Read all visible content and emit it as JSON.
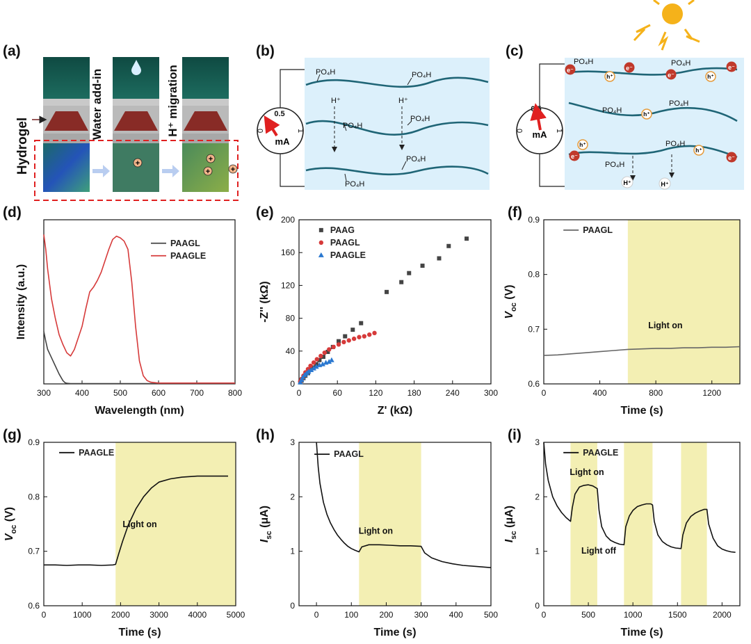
{
  "panel_labels": [
    "(a)",
    "(b)",
    "(c)",
    "(d)",
    "(e)",
    "(f)",
    "(g)",
    "(h)",
    "(i)"
  ],
  "schematic_a": {
    "side_label": "Hydrogel",
    "step_labels": [
      "Water add-in",
      "H⁺ migration"
    ],
    "charge_symbol": "+"
  },
  "schematic_b": {
    "groups": [
      "PO₄H",
      "PO₄H",
      "PO₄H",
      "PO₄H",
      "PO₄H",
      "PO₄H"
    ],
    "ions": [
      "H⁺",
      "H⁺"
    ],
    "meter": {
      "scale_max": "0.5",
      "scale_left": "0",
      "scale_right": "1",
      "unit": "mA"
    }
  },
  "schematic_c": {
    "groups": [
      "PO₄H",
      "PO₄H",
      "PO₄H",
      "PO₄H",
      "PO₄H",
      "PO₄H"
    ],
    "holes": [
      "h⁺",
      "h⁺",
      "h⁺",
      "h⁺",
      "h⁺"
    ],
    "electrons": [
      "e⁻",
      "e⁻",
      "e⁻",
      "e⁻",
      "e⁻",
      "e⁻"
    ],
    "ions": [
      "H⁺",
      "H⁺"
    ],
    "meter": {
      "scale_max": "0.5",
      "scale_left": "0",
      "scale_right": "1",
      "unit": "mA"
    }
  },
  "colors": {
    "light_band": "#f3efb3",
    "red": "#d63a3a",
    "blue": "#2a78d0",
    "gray": "#444444",
    "schematic_bg": "#dff0fb",
    "chain": "#1f6576"
  },
  "chart_data": [
    {
      "id": "d",
      "type": "line",
      "xlabel": "Wavelength (nm)",
      "ylabel": "Intensity (a.u.)",
      "xlim": [
        300,
        800
      ],
      "xticks": [
        300,
        400,
        500,
        600,
        700,
        800
      ],
      "ylim": [
        0,
        1
      ],
      "yticks_hidden": true,
      "legend": "top-right",
      "series": [
        {
          "name": "PAAGL",
          "color": "#444444",
          "x": [
            300,
            305,
            310,
            320,
            330,
            340,
            350,
            355,
            360,
            370,
            400,
            500,
            600,
            700,
            800
          ],
          "y": [
            0.32,
            0.26,
            0.21,
            0.16,
            0.11,
            0.06,
            0.02,
            0.008,
            0.004,
            0.002,
            0.002,
            0.002,
            0.002,
            0.002,
            0.002
          ]
        },
        {
          "name": "PAAGLE",
          "color": "#d63a3a",
          "x": [
            300,
            305,
            310,
            320,
            330,
            340,
            350,
            360,
            370,
            380,
            390,
            400,
            410,
            420,
            430,
            440,
            450,
            460,
            470,
            480,
            490,
            500,
            510,
            520,
            530,
            540,
            550,
            560,
            570,
            580,
            600,
            700,
            800
          ],
          "y": [
            0.91,
            0.82,
            0.7,
            0.52,
            0.4,
            0.3,
            0.24,
            0.19,
            0.17,
            0.21,
            0.28,
            0.35,
            0.46,
            0.56,
            0.59,
            0.63,
            0.68,
            0.75,
            0.82,
            0.88,
            0.9,
            0.89,
            0.87,
            0.82,
            0.62,
            0.35,
            0.14,
            0.05,
            0.02,
            0.01,
            0.005,
            0.005,
            0.005
          ]
        }
      ]
    },
    {
      "id": "e",
      "type": "scatter",
      "xlabel": "Z' (kΩ)",
      "ylabel": "-Z'' (kΩ)",
      "xlim": [
        0,
        300
      ],
      "xticks": [
        0,
        60,
        120,
        180,
        240,
        300
      ],
      "ylim": [
        0,
        200
      ],
      "yticks": [
        0,
        40,
        80,
        120,
        160,
        200
      ],
      "legend": "top-left",
      "series": [
        {
          "name": "PAAG",
          "color": "#444444",
          "marker": "square",
          "x": [
            2,
            4,
            7,
            10,
            14,
            18,
            22,
            27,
            32,
            38,
            45,
            53,
            62,
            72,
            84,
            97,
            137,
            160,
            172,
            193,
            219,
            234,
            262
          ],
          "y": [
            2,
            4,
            7,
            10,
            13,
            17,
            20,
            24,
            29,
            33,
            39,
            45,
            52,
            58,
            66,
            74,
            112,
            124,
            135,
            144,
            153,
            168,
            177
          ]
        },
        {
          "name": "PAAGL",
          "color": "#d63a3a",
          "marker": "circle",
          "x": [
            2,
            4,
            7,
            10,
            14,
            18,
            23,
            28,
            34,
            40,
            47,
            54,
            62,
            70,
            78,
            86,
            94,
            102,
            110,
            118
          ],
          "y": [
            3,
            6,
            10,
            14,
            18,
            22,
            26,
            30,
            34,
            38,
            42,
            45,
            48,
            51,
            53,
            55,
            57,
            58,
            60,
            62
          ]
        },
        {
          "name": "PAAGLE",
          "color": "#2a78d0",
          "marker": "triangle",
          "x": [
            2,
            4,
            6,
            9,
            12,
            15,
            19,
            23,
            27,
            32,
            37,
            42,
            47,
            51
          ],
          "y": [
            2,
            5,
            8,
            11,
            13,
            15,
            17,
            19,
            21,
            23,
            24,
            26,
            27,
            29
          ]
        }
      ]
    },
    {
      "id": "f",
      "type": "line",
      "xlabel": "Time (s)",
      "ylabel": "Voc (V)",
      "xlim": [
        0,
        1400
      ],
      "xticks": [
        0,
        400,
        800,
        1200
      ],
      "ylim": [
        0.6,
        0.9
      ],
      "yticks": [
        0.6,
        0.7,
        0.8,
        0.9
      ],
      "shaded": [
        [
          600,
          1400
        ]
      ],
      "annotation": "Light on",
      "legend": "top-left",
      "series": [
        {
          "name": "PAAGL",
          "color": "#666666",
          "x": [
            0,
            100,
            200,
            300,
            400,
            500,
            600,
            700,
            800,
            900,
            1000,
            1100,
            1200,
            1300,
            1400
          ],
          "y": [
            0.652,
            0.653,
            0.655,
            0.657,
            0.659,
            0.661,
            0.663,
            0.664,
            0.665,
            0.665,
            0.666,
            0.666,
            0.667,
            0.667,
            0.668
          ]
        }
      ]
    },
    {
      "id": "g",
      "type": "line",
      "xlabel": "Time (s)",
      "ylabel": "Voc (V)",
      "xlim": [
        0,
        5000
      ],
      "xticks": [
        0,
        1000,
        2000,
        3000,
        4000,
        5000
      ],
      "ylim": [
        0.6,
        0.9
      ],
      "yticks": [
        0.6,
        0.7,
        0.8,
        0.9
      ],
      "shaded": [
        [
          1870,
          5000
        ]
      ],
      "annotation": "Light on",
      "legend": "top-left",
      "series": [
        {
          "name": "PAAGLE",
          "color": "#111111",
          "x": [
            0,
            300,
            600,
            900,
            1200,
            1500,
            1800,
            1870,
            1950,
            2050,
            2200,
            2400,
            2600,
            2800,
            3000,
            3300,
            3600,
            4000,
            4400,
            4800
          ],
          "y": [
            0.675,
            0.675,
            0.674,
            0.675,
            0.675,
            0.674,
            0.675,
            0.676,
            0.695,
            0.718,
            0.748,
            0.778,
            0.8,
            0.816,
            0.827,
            0.833,
            0.836,
            0.838,
            0.838,
            0.838
          ]
        }
      ]
    },
    {
      "id": "h",
      "type": "line",
      "xlabel": "Time (s)",
      "ylabel": "Isc (μA)",
      "xlim": [
        -50,
        500
      ],
      "xticks": [
        0,
        100,
        200,
        300,
        400,
        500
      ],
      "ylim": [
        0,
        3
      ],
      "yticks": [
        0,
        1,
        2,
        3
      ],
      "shaded": [
        [
          122,
          300
        ]
      ],
      "annotation": "Light on",
      "legend": "top-left",
      "series": [
        {
          "name": "PAAGL",
          "color": "#111111",
          "x": [
            0,
            5,
            10,
            20,
            30,
            40,
            50,
            60,
            70,
            80,
            90,
            100,
            110,
            122,
            130,
            150,
            180,
            210,
            240,
            270,
            300,
            310,
            330,
            360,
            390,
            420,
            460,
            500
          ],
          "y": [
            3.0,
            2.55,
            2.25,
            1.9,
            1.68,
            1.52,
            1.4,
            1.3,
            1.22,
            1.15,
            1.09,
            1.05,
            1.02,
            0.99,
            1.08,
            1.12,
            1.12,
            1.11,
            1.1,
            1.1,
            1.09,
            0.97,
            0.88,
            0.81,
            0.77,
            0.74,
            0.72,
            0.7
          ]
        }
      ]
    },
    {
      "id": "i",
      "type": "line",
      "xlabel": "Time (s)",
      "ylabel": "Isc (μA)",
      "xlim": [
        0,
        2200
      ],
      "xticks": [
        0,
        500,
        1000,
        1500,
        2000
      ],
      "ylim": [
        0,
        3
      ],
      "yticks": [
        0,
        1,
        2,
        3
      ],
      "shaded": [
        [
          300,
          600
        ],
        [
          900,
          1220
        ],
        [
          1540,
          1830
        ]
      ],
      "annotations": [
        "Light on",
        "Light off"
      ],
      "legend": "top-left",
      "series": [
        {
          "name": "PAAGLE",
          "color": "#111111",
          "x": [
            0,
            20,
            50,
            100,
            150,
            200,
            250,
            300,
            320,
            350,
            400,
            450,
            500,
            550,
            600,
            620,
            650,
            700,
            750,
            800,
            850,
            900,
            920,
            960,
            1000,
            1050,
            1100,
            1150,
            1200,
            1220,
            1240,
            1280,
            1330,
            1380,
            1430,
            1480,
            1540,
            1560,
            1600,
            1650,
            1700,
            1750,
            1800,
            1830,
            1850,
            1900,
            1950,
            2000,
            2050,
            2100,
            2150
          ],
          "y": [
            3.0,
            2.6,
            2.3,
            2.0,
            1.83,
            1.71,
            1.62,
            1.55,
            1.8,
            2.05,
            2.18,
            2.21,
            2.22,
            2.2,
            2.15,
            1.75,
            1.45,
            1.28,
            1.2,
            1.16,
            1.13,
            1.12,
            1.45,
            1.65,
            1.75,
            1.82,
            1.85,
            1.87,
            1.87,
            1.85,
            1.55,
            1.3,
            1.18,
            1.12,
            1.08,
            1.06,
            1.05,
            1.3,
            1.52,
            1.64,
            1.7,
            1.74,
            1.77,
            1.77,
            1.5,
            1.24,
            1.1,
            1.04,
            1.01,
            0.99,
            0.98
          ]
        }
      ]
    }
  ]
}
